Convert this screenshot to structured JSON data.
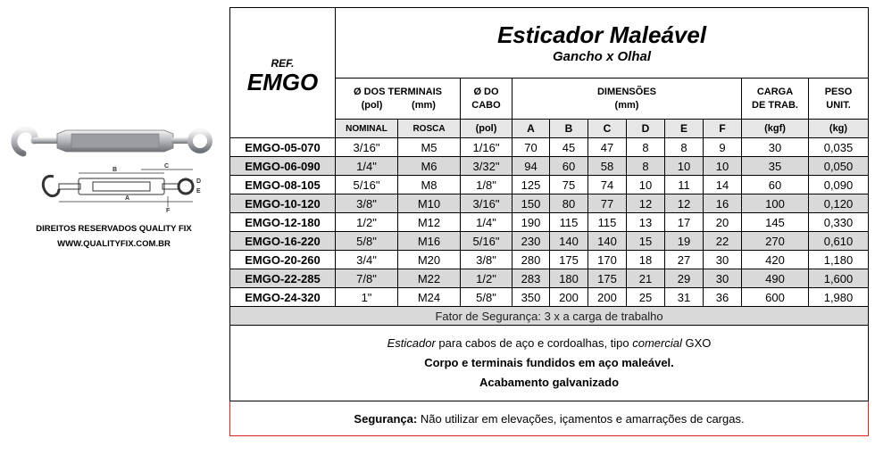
{
  "left": {
    "rights": "DIREITOS RESERVADOS QUALITY FIX",
    "website": "WWW.QUALITYFIX.COM.BR",
    "dimension_letters": [
      "B",
      "C",
      "D",
      "A",
      "F",
      "E"
    ]
  },
  "header": {
    "ref_label": "REF.",
    "ref_code": "EMGO",
    "title": "Esticador Maleável",
    "subtitle": "Gancho x Olhal"
  },
  "columns": {
    "terminals_label": "Ø DOS TERMINAIS",
    "terminals_unit_pol": "(pol)",
    "terminals_unit_mm": "(mm)",
    "cable_label_1": "Ø DO",
    "cable_label_2": "CABO",
    "dims_label": "DIMENSÕES",
    "dims_unit": "(mm)",
    "load_label_1": "CARGA",
    "load_label_2": "DE TRAB.",
    "weight_label_1": "PESO",
    "weight_label_2": "UNIT.",
    "sub_nominal": "NOMINAL",
    "sub_rosca": "ROSCA",
    "sub_pol": "(pol)",
    "sub_a": "A",
    "sub_b": "B",
    "sub_c": "C",
    "sub_d": "D",
    "sub_e": "E",
    "sub_f": "F",
    "sub_kgf": "(kgf)",
    "sub_kg": "(kg)"
  },
  "rows": [
    {
      "code": "EMGO-05-070",
      "nominal": "3/16\"",
      "rosca": "M5",
      "cabo": "1/16\"",
      "a": "70",
      "b": "45",
      "c": "47",
      "d": "8",
      "e": "8",
      "f": "9",
      "carga": "30",
      "peso": "0,035"
    },
    {
      "code": "EMGO-06-090",
      "nominal": "1/4\"",
      "rosca": "M6",
      "cabo": "3/32\"",
      "a": "94",
      "b": "60",
      "c": "58",
      "d": "8",
      "e": "10",
      "f": "10",
      "carga": "35",
      "peso": "0,050"
    },
    {
      "code": "EMGO-08-105",
      "nominal": "5/16\"",
      "rosca": "M8",
      "cabo": "1/8\"",
      "a": "125",
      "b": "75",
      "c": "74",
      "d": "10",
      "e": "11",
      "f": "14",
      "carga": "60",
      "peso": "0,090"
    },
    {
      "code": "EMGO-10-120",
      "nominal": "3/8\"",
      "rosca": "M10",
      "cabo": "3/16\"",
      "a": "150",
      "b": "80",
      "c": "77",
      "d": "12",
      "e": "12",
      "f": "16",
      "carga": "100",
      "peso": "0,120"
    },
    {
      "code": "EMGO-12-180",
      "nominal": "1/2\"",
      "rosca": "M12",
      "cabo": "1/4\"",
      "a": "190",
      "b": "115",
      "c": "115",
      "d": "13",
      "e": "17",
      "f": "20",
      "carga": "145",
      "peso": "0,330"
    },
    {
      "code": "EMGO-16-220",
      "nominal": "5/8\"",
      "rosca": "M16",
      "cabo": "5/16\"",
      "a": "230",
      "b": "140",
      "c": "140",
      "d": "15",
      "e": "19",
      "f": "22",
      "carga": "270",
      "peso": "0,610"
    },
    {
      "code": "EMGO-20-260",
      "nominal": "3/4\"",
      "rosca": "M20",
      "cabo": "3/8\"",
      "a": "280",
      "b": "175",
      "c": "170",
      "d": "18",
      "e": "27",
      "f": "30",
      "carga": "420",
      "peso": "1,180"
    },
    {
      "code": "EMGO-22-285",
      "nominal": "7/8\"",
      "rosca": "M22",
      "cabo": "1/2\"",
      "a": "283",
      "b": "180",
      "c": "175",
      "d": "21",
      "e": "29",
      "f": "30",
      "carga": "490",
      "peso": "1,600"
    },
    {
      "code": "EMGO-24-320",
      "nominal": "1\"",
      "rosca": "M24",
      "cabo": "5/8\"",
      "a": "350",
      "b": "200",
      "c": "200",
      "d": "25",
      "e": "31",
      "f": "36",
      "carga": "600",
      "peso": "1,980"
    }
  ],
  "factor": "Fator de Segurança: 3 x a carga de trabalho",
  "description": {
    "w1": "Esticador",
    "w2": " para cabos de aço e cordoalhas, tipo ",
    "w3": "comercial",
    "w4": " GXO",
    "line2": "Corpo e terminais fundidos em aço maleável.",
    "line3": "Acabamento galvanizado"
  },
  "safety": {
    "label": "Segurança:",
    "text": " Não utilizar em elevações, içamentos e amarrações de cargas."
  },
  "colors": {
    "row_alt": "#d9d9d9",
    "safety_border": "#dd2222"
  }
}
